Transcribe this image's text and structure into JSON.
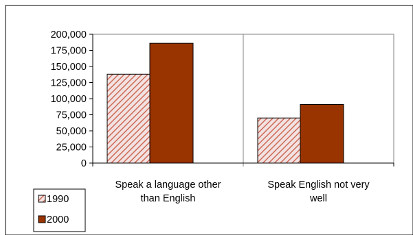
{
  "chart_data": {
    "type": "bar",
    "categories": [
      "Speak a language other than English",
      "Speak English not very well"
    ],
    "category_label_lines": [
      [
        "Speak a language other",
        "than English"
      ],
      [
        "Speak English not very",
        "well"
      ]
    ],
    "series": [
      {
        "name": "1990",
        "values": [
          138000,
          70000
        ],
        "color": "#f0d8d8",
        "pattern": "diagonal-hatch",
        "hatch_color": "#c86450"
      },
      {
        "name": "2000",
        "values": [
          186000,
          91000
        ],
        "color": "#993300"
      }
    ],
    "ylim": [
      0,
      200000
    ],
    "y_ticks": [
      0,
      25000,
      50000,
      75000,
      100000,
      125000,
      150000,
      175000,
      200000
    ],
    "y_tick_labels": [
      "0",
      "25,000",
      "50,000",
      "75,000",
      "100,000",
      "125,000",
      "150,000",
      "175,000",
      "200,000"
    ],
    "title": "",
    "xlabel": "",
    "ylabel": "",
    "grid": false,
    "legend_position": "bottom-left"
  }
}
